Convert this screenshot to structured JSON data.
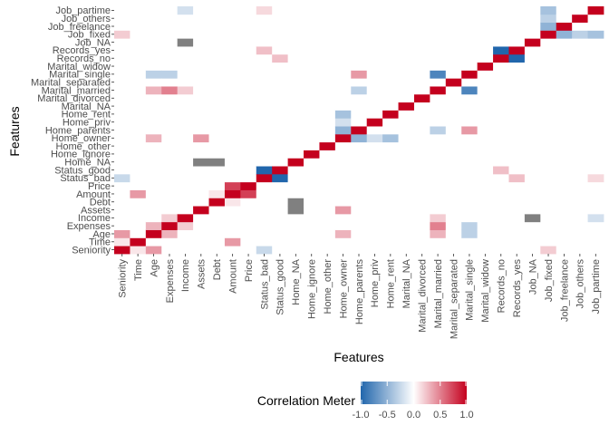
{
  "chart_data": {
    "type": "heatmap",
    "x_label": "Features",
    "y_label": "Features",
    "features": [
      "Seniority",
      "Time",
      "Age",
      "Expenses",
      "Income",
      "Assets",
      "Debt",
      "Amount",
      "Price",
      "Status_bad",
      "Status_good",
      "Home_NA",
      "Home_ignore",
      "Home_other",
      "Home_owner",
      "Home_parents",
      "Home_priv",
      "Home_rent",
      "Marital_NA",
      "Marital_divorced",
      "Marital_married",
      "Marital_separated",
      "Marital_single",
      "Marital_widow",
      "Records_no",
      "Records_yes",
      "Job_NA",
      "Job_fixed",
      "Job_freelance",
      "Job_others",
      "Job_partime"
    ],
    "strong_correlations": [
      {
        "a": "Status_bad",
        "b": "Status_good",
        "value": -1.0
      },
      {
        "a": "Records_no",
        "b": "Records_yes",
        "value": -1.0
      },
      {
        "a": "Marital_married",
        "b": "Marital_single",
        "value": -0.8
      },
      {
        "a": "Home_owner",
        "b": "Home_parents",
        "value": -0.5
      },
      {
        "a": "Home_owner",
        "b": "Home_rent",
        "value": -0.4
      },
      {
        "a": "Job_fixed",
        "b": "Job_partime",
        "value": -0.4
      },
      {
        "a": "Job_fixed",
        "b": "Job_freelance",
        "value": -0.5
      },
      {
        "a": "Job_fixed",
        "b": "Job_others",
        "value": -0.3
      },
      {
        "a": "Age",
        "b": "Marital_single",
        "value": -0.3
      },
      {
        "a": "Expenses",
        "b": "Marital_single",
        "value": -0.3
      },
      {
        "a": "Age",
        "b": "Marital_married",
        "value": 0.3
      },
      {
        "a": "Expenses",
        "b": "Marital_married",
        "value": 0.5
      },
      {
        "a": "Age",
        "b": "Seniority",
        "value": 0.4
      },
      {
        "a": "Age",
        "b": "Expenses",
        "value": 0.3
      },
      {
        "a": "Amount",
        "b": "Price",
        "value": 0.75
      },
      {
        "a": "Time",
        "b": "Amount",
        "value": 0.4
      },
      {
        "a": "Assets",
        "b": "Home_owner",
        "value": 0.4
      },
      {
        "a": "Age",
        "b": "Home_owner",
        "value": 0.3
      },
      {
        "a": "Seniority",
        "b": "Status_bad",
        "value": -0.25
      },
      {
        "a": "Marital_single",
        "b": "Home_parents",
        "value": 0.4
      },
      {
        "a": "Marital_married",
        "b": "Home_parents",
        "value": -0.3
      },
      {
        "a": "Time",
        "b": "Seniority",
        "value": 0.1
      },
      {
        "a": "Income",
        "b": "Expenses",
        "value": 0.2
      },
      {
        "a": "Debt",
        "b": "Amount",
        "value": 0.1
      },
      {
        "a": "Income",
        "b": "Marital_married",
        "value": 0.2
      },
      {
        "a": "Income",
        "b": "Job_partime",
        "value": -0.2
      },
      {
        "a": "Seniority",
        "b": "Job_fixed",
        "value": 0.2
      },
      {
        "a": "Home_owner",
        "b": "Home_priv",
        "value": -0.2
      },
      {
        "a": "Status_bad",
        "b": "Job_partime",
        "value": 0.15
      },
      {
        "a": "Records_yes",
        "b": "Status_bad",
        "value": 0.25
      },
      {
        "a": "Records_no",
        "b": "Status_good",
        "value": 0.25
      }
    ],
    "na_pairs": [
      {
        "a": "Home_NA",
        "b": "Assets"
      },
      {
        "a": "Home_NA",
        "b": "Debt"
      },
      {
        "a": "Job_NA",
        "b": "Income"
      }
    ],
    "na_color": "#808080",
    "legend": {
      "title": "Correlation Meter",
      "ticks": [
        -1.0,
        -0.5,
        0.0,
        0.5,
        1.0
      ],
      "tick_labels": [
        "-1.0",
        "-0.5",
        "0.0",
        "0.5",
        "1.0"
      ],
      "low_color": "#2166ac",
      "mid_color": "#ffffff",
      "high_color": "#c4001e",
      "position": "bottom"
    },
    "range": [
      -1,
      1
    ]
  }
}
